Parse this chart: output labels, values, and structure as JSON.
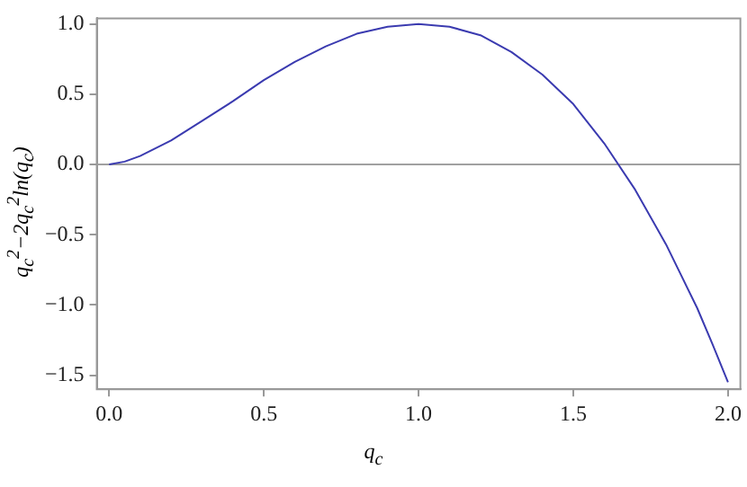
{
  "chart_data": {
    "type": "line",
    "xlabel": "q$_{c}$",
    "ylabel": "q$_{c}$$^{2}$−2q$_{c}$$^{2}$ln(q$_{c}$)",
    "x": [
      0,
      0.05,
      0.1,
      0.2,
      0.3,
      0.4,
      0.5,
      0.6,
      0.7,
      0.8,
      0.9,
      1.0,
      1.1,
      1.2,
      1.3,
      1.4,
      1.5,
      1.6,
      1.7,
      1.8,
      1.9,
      1.95,
      2.0
    ],
    "series": [
      {
        "color": "#3b3bb0",
        "values": [
          0,
          0.02,
          0.06,
          0.17,
          0.31,
          0.45,
          0.6,
          0.73,
          0.84,
          0.93,
          0.98,
          1.0,
          0.98,
          0.92,
          0.8,
          0.64,
          0.43,
          0.15,
          -0.18,
          -0.57,
          -1.02,
          -1.28,
          -1.55
        ]
      }
    ],
    "xlim": [
      -0.04,
      2.04
    ],
    "ylim": [
      -1.6,
      1.04
    ],
    "xticks": [
      {
        "value": 0,
        "label": "0.0"
      },
      {
        "value": 0.5,
        "label": "0.5"
      },
      {
        "value": 1,
        "label": "1.0"
      },
      {
        "value": 1.5,
        "label": "1.5"
      },
      {
        "value": 2,
        "label": "2.0"
      }
    ],
    "yticks": [
      {
        "value": -1.5,
        "label": "−1.5"
      },
      {
        "value": -1,
        "label": "−1.0"
      },
      {
        "value": -0.5,
        "label": "−0.5"
      },
      {
        "value": 0,
        "label": "0.0"
      },
      {
        "value": 0.5,
        "label": "0.5"
      },
      {
        "value": 1,
        "label": "1.0"
      }
    ],
    "ref_lines": [
      {
        "axis": "y",
        "value": 0,
        "color": "#a0a0a0"
      }
    ],
    "grid": false,
    "legend": false,
    "marker": "none",
    "line_style": "solid"
  }
}
